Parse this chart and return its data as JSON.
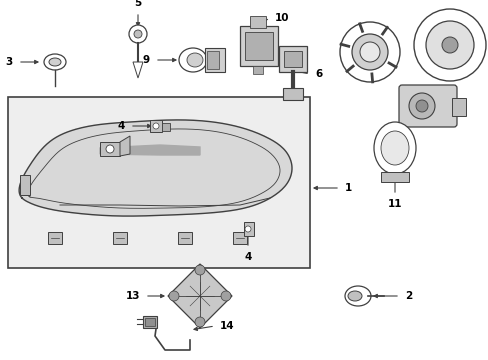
{
  "bg_color": "#ffffff",
  "line_color": "#404040",
  "text_color": "#000000",
  "fig_w": 4.89,
  "fig_h": 3.6,
  "dpi": 100
}
